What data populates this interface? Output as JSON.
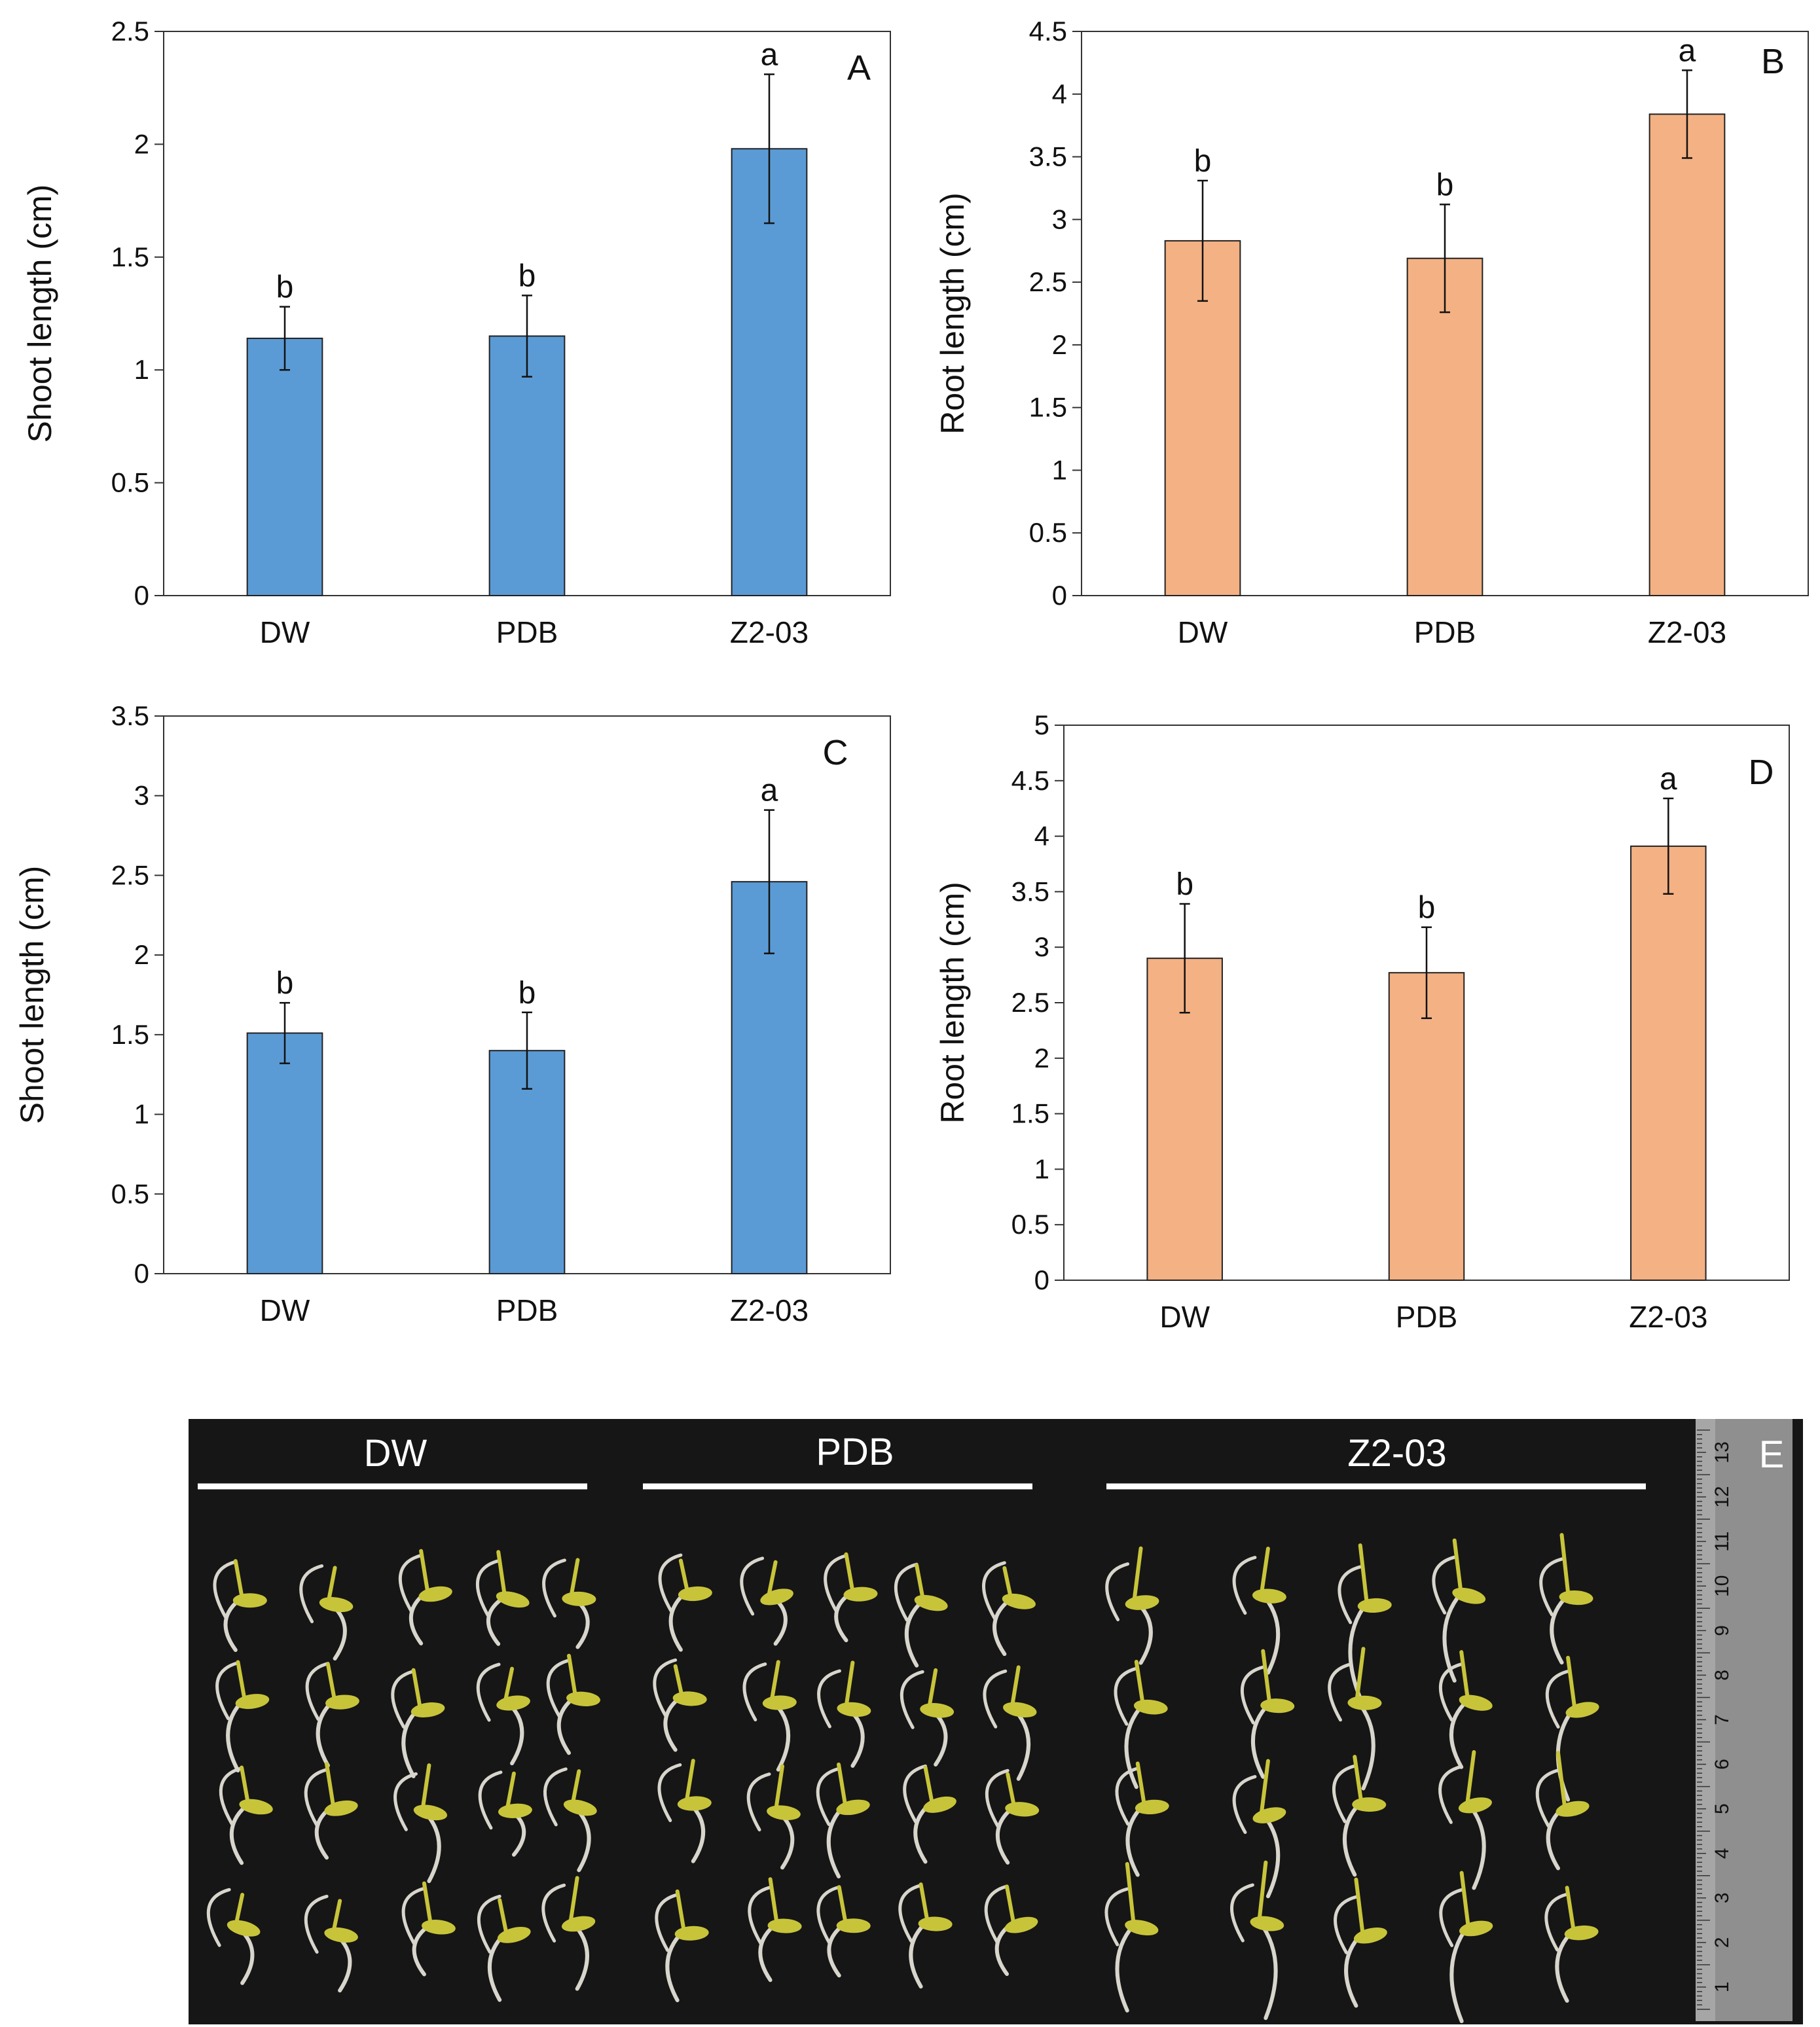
{
  "chart_data": [
    {
      "type": "bar",
      "panel": "A",
      "categories": [
        "DW",
        "PDB",
        "Z2-03"
      ],
      "values": [
        1.14,
        1.15,
        1.98
      ],
      "errors": [
        0.14,
        0.18,
        0.33
      ],
      "significance": [
        "b",
        "b",
        "a"
      ],
      "ylabel": "Shoot length (cm)",
      "xlabel": "",
      "ylim": [
        0,
        2.5
      ],
      "yticks": [
        "0",
        "0.5",
        "1",
        "1.5",
        "2",
        "2.5"
      ],
      "color": "#5b9bd5",
      "grid": false
    },
    {
      "type": "bar",
      "panel": "B",
      "categories": [
        "DW",
        "PDB",
        "Z2-03"
      ],
      "values": [
        2.83,
        2.69,
        3.84
      ],
      "errors": [
        0.48,
        0.43,
        0.35
      ],
      "significance": [
        "b",
        "b",
        "a"
      ],
      "ylabel": "Root length (cm)",
      "xlabel": "",
      "ylim": [
        0,
        4.5
      ],
      "yticks": [
        "0",
        "0.5",
        "1",
        "1.5",
        "2",
        "2.5",
        "3",
        "3.5",
        "4",
        "4.5"
      ],
      "color": "#f4b183",
      "grid": false
    },
    {
      "type": "bar",
      "panel": "C",
      "categories": [
        "DW",
        "PDB",
        "Z2-03"
      ],
      "values": [
        1.51,
        1.4,
        2.46
      ],
      "errors": [
        0.19,
        0.24,
        0.45
      ],
      "significance": [
        "b",
        "b",
        "a"
      ],
      "ylabel": "Shoot length (cm)",
      "xlabel": "",
      "ylim": [
        0,
        3.5
      ],
      "yticks": [
        "0",
        "0.5",
        "1",
        "1.5",
        "2",
        "2.5",
        "3",
        "3.5"
      ],
      "color": "#5b9bd5",
      "grid": false
    },
    {
      "type": "bar",
      "panel": "D",
      "categories": [
        "DW",
        "PDB",
        "Z2-03"
      ],
      "values": [
        2.9,
        2.77,
        3.91
      ],
      "errors": [
        0.49,
        0.41,
        0.43
      ],
      "significance": [
        "b",
        "b",
        "a"
      ],
      "ylabel": "Root length (cm)",
      "xlabel": "",
      "ylim": [
        0,
        5
      ],
      "yticks": [
        "0",
        "0.5",
        "1",
        "1.5",
        "2",
        "2.5",
        "3",
        "3.5",
        "4",
        "4.5",
        "5"
      ],
      "color": "#f4b183",
      "grid": false
    }
  ],
  "photo": {
    "panel": "E",
    "groups": [
      "DW",
      "PDB",
      "Z2-03"
    ],
    "ruler_marks": [
      "1",
      "2",
      "3",
      "4",
      "5",
      "6",
      "7",
      "8",
      "9",
      "10",
      "11",
      "12",
      "13"
    ],
    "background_color": "#161616",
    "seedling_color": "#c8c43a",
    "root_color": "#d8d6cc"
  }
}
